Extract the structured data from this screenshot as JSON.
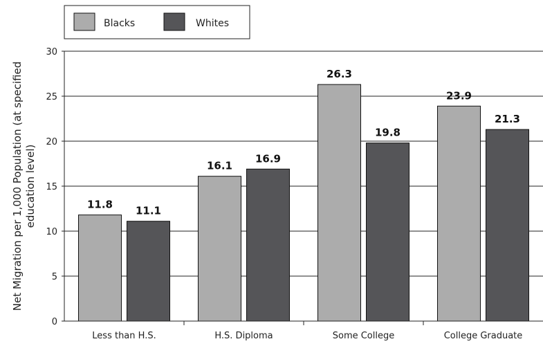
{
  "chart_data": {
    "type": "bar",
    "categories": [
      "Less than H.S.",
      "H.S. Diploma",
      "Some College",
      "College Graduate"
    ],
    "series": [
      {
        "name": "Blacks",
        "values": [
          11.8,
          16.1,
          26.3,
          23.9
        ],
        "labels": [
          "11.8",
          "16.1",
          "26.3",
          "23.9"
        ],
        "color": "#acacac"
      },
      {
        "name": "Whites",
        "values": [
          11.1,
          16.9,
          19.8,
          21.3
        ],
        "labels": [
          "11.1",
          "16.9",
          "19.8",
          "21.3"
        ],
        "color": "#555558"
      }
    ],
    "ylabel": [
      "Net Migration per 1,000 Population (at specified",
      "education level)"
    ],
    "ylim": [
      0,
      30
    ],
    "yticks": [
      0,
      5,
      10,
      15,
      20,
      25,
      30
    ],
    "ytick_labels": [
      "0",
      "5",
      "10",
      "15",
      "20",
      "25",
      "30"
    ],
    "legend_position": "top-left",
    "grid": true
  }
}
